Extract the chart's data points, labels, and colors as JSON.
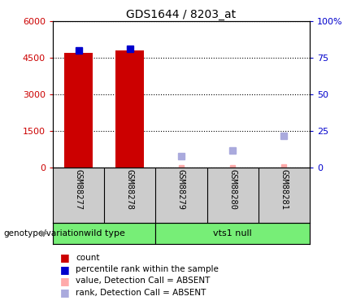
{
  "title": "GDS1644 / 8203_at",
  "samples": [
    "GSM88277",
    "GSM88278",
    "GSM88279",
    "GSM88280",
    "GSM88281"
  ],
  "count_values": [
    4700,
    4800,
    10,
    20,
    30
  ],
  "rank_values": [
    80,
    81,
    0,
    0,
    0
  ],
  "absent_rank_values": [
    0,
    0,
    8,
    12,
    22
  ],
  "present_mask": [
    true,
    true,
    false,
    false,
    false
  ],
  "ylim_left": [
    0,
    6000
  ],
  "ylim_right": [
    0,
    100
  ],
  "yticks_left": [
    0,
    1500,
    3000,
    4500,
    6000
  ],
  "ytick_labels_left": [
    "0",
    "1500",
    "3000",
    "4500",
    "6000"
  ],
  "yticks_right": [
    0,
    25,
    50,
    75,
    100
  ],
  "ytick_labels_right": [
    "0",
    "25",
    "50",
    "75",
    "100%"
  ],
  "yaxis_left_color": "#cc0000",
  "yaxis_right_color": "#0000cc",
  "bar_color": "#cc0000",
  "rank_color": "#0000cc",
  "absent_value_color": "#ffaaaa",
  "absent_rank_color": "#aaaadd",
  "grid_color": "#000000",
  "plot_bg": "#ffffff",
  "sample_bg": "#cccccc",
  "group_defs": [
    {
      "label": "wild type",
      "start": 0,
      "end": 1,
      "color": "#77ee77"
    },
    {
      "label": "vts1 null",
      "start": 2,
      "end": 4,
      "color": "#77ee77"
    }
  ],
  "legend_items": [
    {
      "label": "count",
      "color": "#cc0000"
    },
    {
      "label": "percentile rank within the sample",
      "color": "#0000cc"
    },
    {
      "label": "value, Detection Call = ABSENT",
      "color": "#ffaaaa"
    },
    {
      "label": "rank, Detection Call = ABSENT",
      "color": "#aaaadd"
    }
  ],
  "genotype_label": "genotype/variation",
  "bar_width": 0.55
}
